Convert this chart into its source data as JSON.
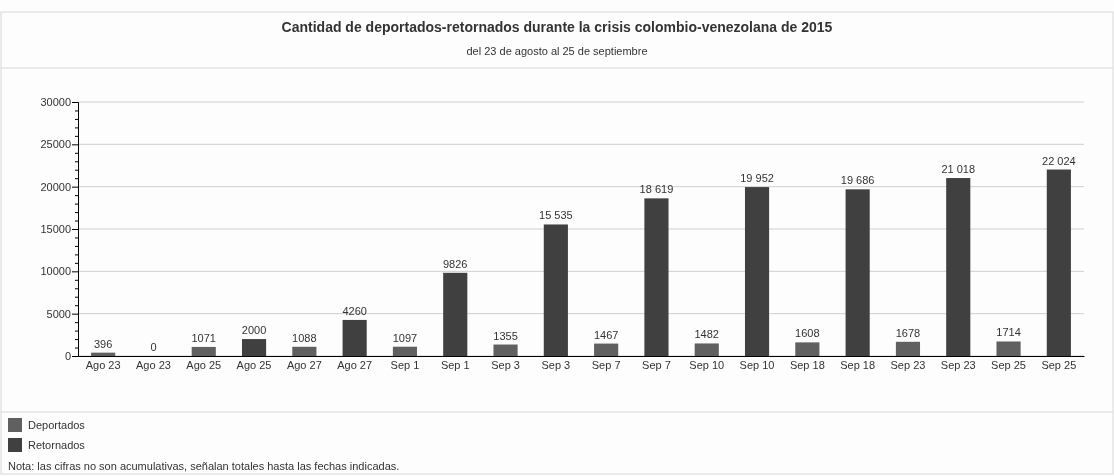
{
  "chart_data": {
    "type": "bar",
    "title": "Cantidad de deportados-retornados durante la crisis colombio-venezolana de 2015",
    "subtitle": "del 23 de agosto al 25 de septiembre",
    "categories": [
      "Ago 23",
      "Ago 23",
      "Ago 25",
      "Ago 25",
      "Ago 27",
      "Ago 27",
      "Sep 1",
      "Sep 1",
      "Sep 3",
      "Sep 3",
      "Sep 7",
      "Sep 7",
      "Sep 10",
      "Sep 10",
      "Sep 18",
      "Sep 18",
      "Sep 23",
      "Sep 23",
      "Sep 25",
      "Sep 25"
    ],
    "series": [
      {
        "name": "Deportados",
        "color": "#606060",
        "values": [
          396,
          null,
          1071,
          null,
          1088,
          null,
          1097,
          null,
          1355,
          null,
          1467,
          null,
          1482,
          null,
          1608,
          null,
          1678,
          null,
          1714,
          null
        ],
        "value_labels": [
          "396",
          null,
          "1071",
          null,
          "1088",
          null,
          "1097",
          null,
          "1355",
          null,
          "1467",
          null,
          "1482",
          null,
          "1608",
          null,
          "1678",
          null,
          "1714",
          null
        ]
      },
      {
        "name": "Retornados",
        "color": "#404040",
        "values": [
          null,
          0,
          null,
          2000,
          null,
          4260,
          null,
          9826,
          null,
          15535,
          null,
          18619,
          null,
          19952,
          null,
          19686,
          null,
          21018,
          null,
          22024
        ],
        "value_labels": [
          null,
          "0",
          null,
          "2000",
          null,
          "4260",
          null,
          "9826",
          null,
          "15 535",
          null,
          "18 619",
          null,
          "19 952",
          null,
          "19 686",
          null,
          "21 018",
          null,
          "22 024"
        ]
      }
    ],
    "ylim": [
      0,
      30000
    ],
    "yticks": [
      0,
      {
        "value": 1000,
        "label": null
      },
      {
        "value": 2000,
        "label": null
      },
      {
        "value": 3000,
        "label": null
      },
      {
        "value": 4000,
        "label": null
      },
      5000,
      {
        "value": 6000,
        "label": null
      },
      {
        "value": 7000,
        "label": null
      },
      {
        "value": 8000,
        "label": null
      },
      {
        "value": 9000,
        "label": null
      },
      10000,
      {
        "value": 11000,
        "label": null
      },
      {
        "value": 12000,
        "label": null
      },
      {
        "value": 13000,
        "label": null
      },
      {
        "value": 14000,
        "label": null
      },
      15000,
      {
        "value": 16000,
        "label": null
      },
      {
        "value": 17000,
        "label": null
      },
      {
        "value": 18000,
        "label": null
      },
      {
        "value": 19000,
        "label": null
      },
      20000,
      {
        "value": 21000,
        "label": null
      },
      {
        "value": 22000,
        "label": null
      },
      {
        "value": 23000,
        "label": null
      },
      {
        "value": 24000,
        "label": null
      },
      25000,
      {
        "value": 26000,
        "label": null
      },
      {
        "value": 27000,
        "label": null
      },
      {
        "value": 28000,
        "label": null
      },
      {
        "value": 29000,
        "label": null
      },
      30000
    ],
    "grid": "y",
    "legend": "bottom left",
    "annotations": [
      "Nota: las cifras no son acumulativas, señalan totales hasta las fechas indicadas."
    ]
  }
}
